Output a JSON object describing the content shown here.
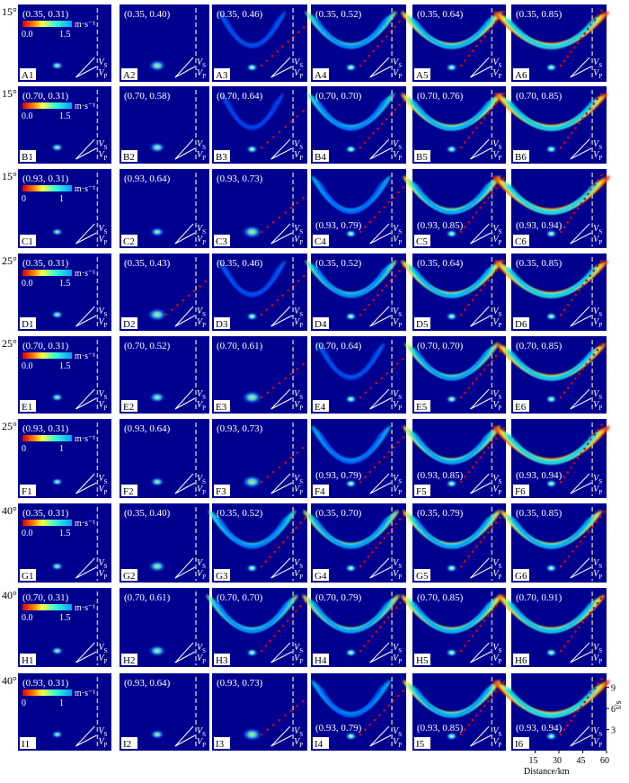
{
  "chart_data": {
    "type": "heatmap",
    "description_grid": "9 rows x 6 columns of wavefield panels",
    "colorbar": {
      "unit": "m·s⁻¹",
      "ranges": [
        [
          "0.0",
          "1.5"
        ],
        [
          "0.0",
          "1.5"
        ],
        [
          "0",
          "1"
        ],
        [
          "0.0",
          "1.5"
        ],
        [
          "0.0",
          "1.5"
        ],
        [
          "0",
          "1"
        ],
        [
          "0.0",
          "1.5"
        ],
        [
          "0.0",
          "1.5"
        ],
        [
          "0",
          "1"
        ]
      ]
    },
    "velocity_labels": [
      "V",
      "S",
      "P"
    ],
    "xaxis": {
      "title": "Distance/km",
      "ticks": [
        "15",
        "30",
        "45",
        "60"
      ],
      "range": [
        0,
        60
      ]
    },
    "yaxis": {
      "title": "t/s",
      "ticks": [
        "3",
        "6",
        "9"
      ],
      "range": [
        0,
        11
      ]
    },
    "rows": [
      {
        "angle": "15°",
        "letter": "A",
        "coords": [
          "(0.35, 0.31)",
          "(0.35, 0.40)",
          "(0.35, 0.46)",
          "(0.35, 0.52)",
          "(0.35, 0.64)",
          "(0.35, 0.85)"
        ],
        "intensity": [
          0.05,
          0.15,
          0.35,
          0.65,
          0.8,
          0.95
        ],
        "bottom_coord": false
      },
      {
        "angle": "15°",
        "letter": "B",
        "coords": [
          "(0.70, 0.31)",
          "(0.70, 0.58)",
          "(0.70, 0.64)",
          "(0.70, 0.70)",
          "(0.70, 0.76)",
          "(0.70, 0.85)"
        ],
        "intensity": [
          0.05,
          0.12,
          0.3,
          0.6,
          0.8,
          0.92
        ],
        "bottom_coord": false
      },
      {
        "angle": "15°",
        "letter": "C",
        "coords": [
          "(0.93, 0.31)",
          "(0.93, 0.64)",
          "(0.93, 0.73)",
          "(0.93, 0.79)",
          "(0.93, 0.85)",
          "(0.93, 0.94)"
        ],
        "intensity": [
          0.03,
          0.08,
          0.2,
          0.5,
          0.75,
          0.97
        ],
        "bottom_coord": true
      },
      {
        "angle": "25°",
        "letter": "D",
        "coords": [
          "(0.35, 0.31)",
          "(0.35, 0.43)",
          "(0.35, 0.46)",
          "(0.35, 0.52)",
          "(0.35, 0.64)",
          "(0.35, 0.85)"
        ],
        "intensity": [
          0.05,
          0.2,
          0.35,
          0.65,
          0.8,
          0.93
        ],
        "bottom_coord": false
      },
      {
        "angle": "25°",
        "letter": "E",
        "coords": [
          "(0.70, 0.31)",
          "(0.70, 0.52)",
          "(0.70, 0.61)",
          "(0.70, 0.64)",
          "(0.70, 0.70)",
          "(0.70, 0.85)"
        ],
        "intensity": [
          0.05,
          0.12,
          0.2,
          0.35,
          0.7,
          0.88
        ],
        "bottom_coord": false
      },
      {
        "angle": "25°",
        "letter": "F",
        "coords": [
          "(0.93, 0.31)",
          "(0.93, 0.64)",
          "(0.93, 0.73)",
          "(0.93, 0.79)",
          "(0.93, 0.85)",
          "(0.93, 0.94)"
        ],
        "intensity": [
          0.03,
          0.08,
          0.2,
          0.5,
          0.75,
          0.97
        ],
        "bottom_coord": true
      },
      {
        "angle": "40°",
        "letter": "G",
        "coords": [
          "(0.35, 0.31)",
          "(0.35, 0.40)",
          "(0.35, 0.52)",
          "(0.35, 0.70)",
          "(0.35, 0.79)",
          "(0.35, 0.85)"
        ],
        "intensity": [
          0.05,
          0.15,
          0.6,
          0.7,
          0.75,
          0.78
        ],
        "bottom_coord": false
      },
      {
        "angle": "40°",
        "letter": "H",
        "coords": [
          "(0.70, 0.31)",
          "(0.70, 0.61)",
          "(0.70, 0.70)",
          "(0.70, 0.79)",
          "(0.70, 0.85)",
          "(0.70, 0.91)"
        ],
        "intensity": [
          0.05,
          0.15,
          0.65,
          0.72,
          0.8,
          0.85
        ],
        "bottom_coord": false
      },
      {
        "angle": "40°",
        "letter": "I",
        "coords": [
          "(0.93, 0.31)",
          "(0.93, 0.64)",
          "(0.93, 0.73)",
          "(0.93, 0.79)",
          "(0.93, 0.85)",
          "(0.93, 0.94)"
        ],
        "intensity": [
          0.03,
          0.08,
          0.2,
          0.5,
          0.75,
          0.97
        ],
        "bottom_coord": true
      }
    ]
  }
}
